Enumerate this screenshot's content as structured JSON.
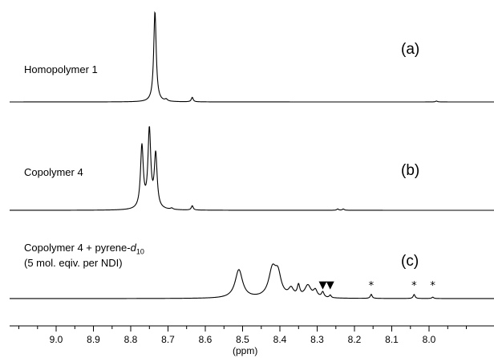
{
  "chart_data": {
    "type": "line",
    "xlabel": "(ppm)",
    "xlim": [
      9.2,
      7.88
    ],
    "x_reversed": true,
    "x_ticks": [
      9.0,
      8.9,
      8.8,
      8.7,
      8.6,
      8.5,
      8.4,
      8.3,
      8.2,
      8.1,
      8.0
    ],
    "grid": false,
    "panels": [
      {
        "tag": "(a)",
        "label_lines": [
          "Homopolymer 1"
        ],
        "peaks": [
          {
            "shift": 8.735,
            "height": 1.0,
            "width": 0.004
          },
          {
            "shift": 8.705,
            "height": 0.02,
            "width": 0.004
          },
          {
            "shift": 8.635,
            "height": 0.05,
            "width": 0.003
          },
          {
            "shift": 7.98,
            "height": 0.01,
            "width": 0.003
          }
        ],
        "markers": []
      },
      {
        "tag": "(b)",
        "label_lines": [
          "Copolymer 4"
        ],
        "peaks": [
          {
            "shift": 8.77,
            "height": 0.72,
            "width": 0.0045
          },
          {
            "shift": 8.75,
            "height": 0.9,
            "width": 0.0045
          },
          {
            "shift": 8.733,
            "height": 0.62,
            "width": 0.0045
          },
          {
            "shift": 8.69,
            "height": 0.015,
            "width": 0.004
          },
          {
            "shift": 8.635,
            "height": 0.05,
            "width": 0.003
          },
          {
            "shift": 8.245,
            "height": 0.015,
            "width": 0.003
          },
          {
            "shift": 8.23,
            "height": 0.015,
            "width": 0.003
          }
        ],
        "markers": []
      },
      {
        "tag": "(c)",
        "label_lines": [
          "Copolymer 4 + pyrene-",
          "(5 mol. eqiv. per NDI)"
        ],
        "label_sub": {
          "italic": "d",
          "subscript": "10"
        },
        "peaks": [
          {
            "shift": 8.51,
            "height": 0.42,
            "width": 0.012
          },
          {
            "shift": 8.42,
            "height": 0.4,
            "width": 0.012
          },
          {
            "shift": 8.405,
            "height": 0.3,
            "width": 0.01
          },
          {
            "shift": 8.37,
            "height": 0.12,
            "width": 0.008
          },
          {
            "shift": 8.35,
            "height": 0.16,
            "width": 0.004
          },
          {
            "shift": 8.325,
            "height": 0.18,
            "width": 0.01
          },
          {
            "shift": 8.305,
            "height": 0.1,
            "width": 0.006
          },
          {
            "shift": 8.285,
            "height": 0.08,
            "width": 0.004
          },
          {
            "shift": 8.265,
            "height": 0.04,
            "width": 0.003
          },
          {
            "shift": 8.155,
            "height": 0.06,
            "width": 0.003
          },
          {
            "shift": 8.04,
            "height": 0.06,
            "width": 0.003
          },
          {
            "shift": 7.99,
            "height": 0.02,
            "width": 0.003
          }
        ],
        "markers": [
          {
            "shift": 8.285,
            "symbol": "▼"
          },
          {
            "shift": 8.265,
            "symbol": "▼"
          },
          {
            "shift": 8.155,
            "symbol": "*"
          },
          {
            "shift": 8.04,
            "symbol": "*"
          },
          {
            "shift": 7.99,
            "symbol": "*"
          }
        ]
      }
    ]
  },
  "colors": {
    "trace": "#000000",
    "background": "#ffffff"
  }
}
